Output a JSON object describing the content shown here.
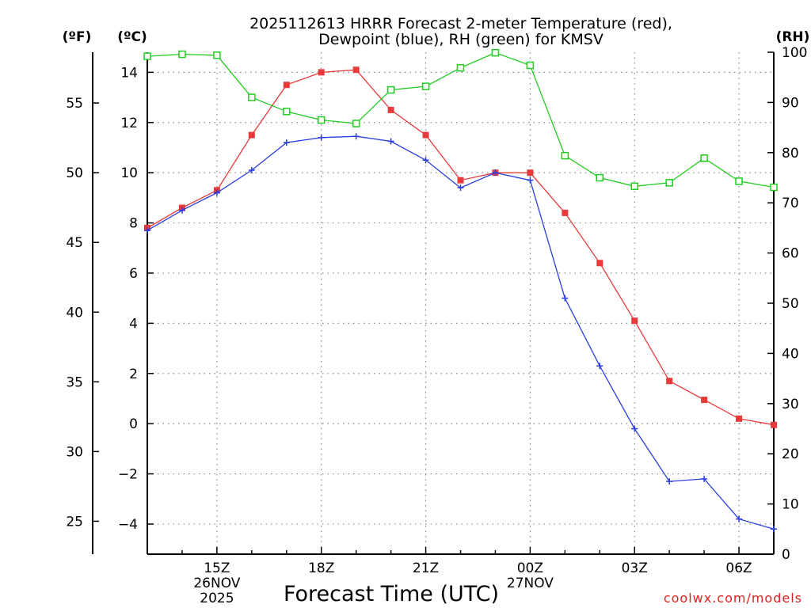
{
  "chart_data": {
    "type": "line",
    "title_line1": "2025112613 HRRR Forecast 2-meter Temperature (red),",
    "title_line2": "Dewpoint (blue), RH (green) for KMSV",
    "xlabel": "Forecast Time (UTC)",
    "credit": "coolwx.com/models",
    "units": {
      "fahrenheit": "(ºF)",
      "celsius": "(ºC)",
      "rh": "(RH)"
    },
    "hour_range": [
      13,
      31
    ],
    "celsius_range": [
      -5.2,
      14.8
    ],
    "rh_range": [
      0,
      100
    ],
    "fahrenheit_ticks": [
      25,
      30,
      35,
      40,
      45,
      50,
      55
    ],
    "celsius_ticks": [
      -4,
      -2,
      0,
      2,
      4,
      6,
      8,
      10,
      12,
      14
    ],
    "rh_ticks": [
      0,
      10,
      20,
      30,
      40,
      50,
      60,
      70,
      80,
      90,
      100
    ],
    "x_ticks": [
      {
        "hour": 15,
        "label": "15Z",
        "date": "26NOV",
        "year": "2025"
      },
      {
        "hour": 18,
        "label": "18Z"
      },
      {
        "hour": 21,
        "label": "21Z"
      },
      {
        "hour": 24,
        "label": "00Z",
        "date": "27NOV"
      },
      {
        "hour": 27,
        "label": "03Z"
      },
      {
        "hour": 30,
        "label": "06Z"
      }
    ],
    "hours": [
      13,
      14,
      15,
      16,
      17,
      18,
      19,
      20,
      21,
      22,
      23,
      24,
      25,
      26,
      27,
      28,
      29,
      30,
      31
    ],
    "series": [
      {
        "name": "Temperature",
        "unit": "C",
        "color": "#e83a3a",
        "marker": "filled-square",
        "values": [
          7.8,
          8.6,
          9.3,
          11.5,
          13.5,
          14.0,
          14.1,
          12.5,
          11.5,
          9.7,
          10.0,
          10.0,
          8.4,
          6.4,
          4.1,
          1.7,
          0.95,
          0.2,
          -0.05
        ]
      },
      {
        "name": "Dewpoint",
        "unit": "C",
        "color": "#2a3de0",
        "marker": "plus",
        "values": [
          7.7,
          8.5,
          9.2,
          10.1,
          11.2,
          11.4,
          11.45,
          11.25,
          10.5,
          9.4,
          10.0,
          9.7,
          5.0,
          2.3,
          -0.2,
          -2.3,
          -2.2,
          -3.8,
          -4.2
        ]
      },
      {
        "name": "RH",
        "unit": "%",
        "color": "#22cc22",
        "marker": "open-square",
        "values": [
          99.2,
          99.6,
          99.4,
          91.0,
          88.2,
          86.5,
          85.8,
          92.5,
          93.2,
          96.9,
          99.9,
          97.4,
          79.4,
          75.0,
          73.3,
          74.0,
          78.9,
          74.3,
          73.1
        ]
      }
    ]
  }
}
